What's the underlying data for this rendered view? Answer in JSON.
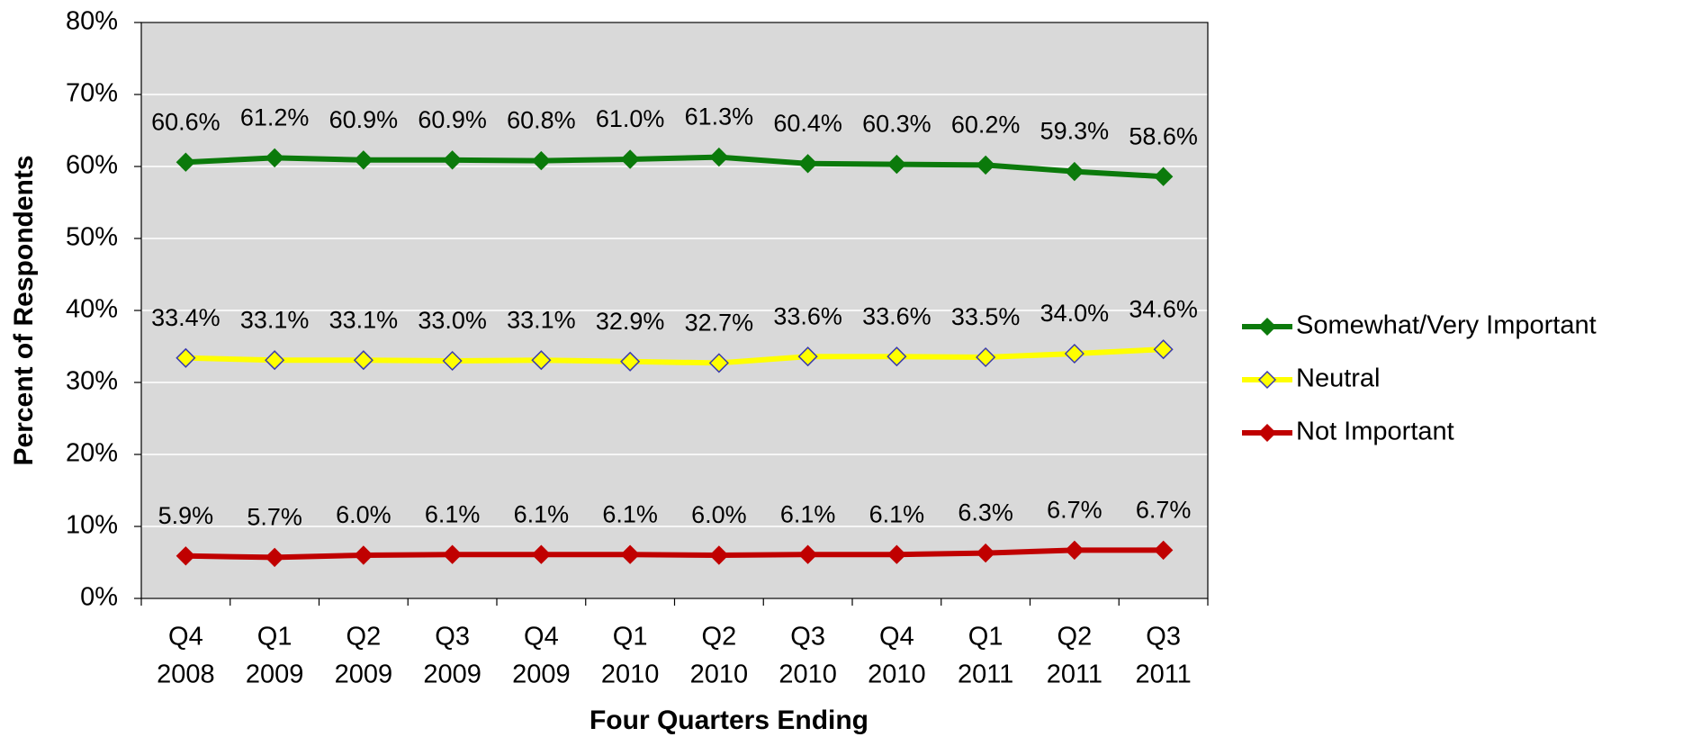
{
  "chart_data": {
    "type": "line",
    "xlabel": "Four Quarters Ending",
    "ylabel": "Percent of Respondents",
    "categories": [
      [
        "Q4",
        "2008"
      ],
      [
        "Q1",
        "2009"
      ],
      [
        "Q2",
        "2009"
      ],
      [
        "Q3",
        "2009"
      ],
      [
        "Q4",
        "2009"
      ],
      [
        "Q1",
        "2010"
      ],
      [
        "Q2",
        "2010"
      ],
      [
        "Q3",
        "2010"
      ],
      [
        "Q4",
        "2010"
      ],
      [
        "Q1",
        "2011"
      ],
      [
        "Q2",
        "2011"
      ],
      [
        "Q3",
        "2011"
      ]
    ],
    "series": [
      {
        "name": "Somewhat/Very Important",
        "color": "#0b7a0b",
        "marker_color": "#0b7a0b",
        "values": [
          60.6,
          61.2,
          60.9,
          60.9,
          60.8,
          61.0,
          61.3,
          60.4,
          60.3,
          60.2,
          59.3,
          58.6
        ],
        "value_labels": [
          "60.6%",
          "61.2%",
          "60.9%",
          "60.9%",
          "60.8%",
          "61.0%",
          "61.3%",
          "60.4%",
          "60.3%",
          "60.2%",
          "59.3%",
          "58.6%"
        ]
      },
      {
        "name": "Neutral",
        "color": "#ffff00",
        "marker_color": "#3a3ab0",
        "values": [
          33.4,
          33.1,
          33.1,
          33.0,
          33.1,
          32.9,
          32.7,
          33.6,
          33.6,
          33.5,
          34.0,
          34.6
        ],
        "value_labels": [
          "33.4%",
          "33.1%",
          "33.1%",
          "33.0%",
          "33.1%",
          "32.9%",
          "32.7%",
          "33.6%",
          "33.6%",
          "33.5%",
          "34.0%",
          "34.6%"
        ]
      },
      {
        "name": "Not Important",
        "color": "#c00000",
        "marker_color": "#c00000",
        "values": [
          5.9,
          5.7,
          6.0,
          6.1,
          6.1,
          6.1,
          6.0,
          6.1,
          6.1,
          6.3,
          6.7,
          6.7
        ],
        "value_labels": [
          "5.9%",
          "5.7%",
          "6.0%",
          "6.1%",
          "6.1%",
          "6.1%",
          "6.0%",
          "6.1%",
          "6.1%",
          "6.3%",
          "6.7%",
          "6.7%"
        ]
      }
    ],
    "ylim": [
      0,
      80
    ],
    "yticks": [
      {
        "value": 0,
        "label": "0%"
      },
      {
        "value": 10,
        "label": "10%"
      },
      {
        "value": 20,
        "label": "20%"
      },
      {
        "value": 30,
        "label": "30%"
      },
      {
        "value": 40,
        "label": "40%"
      },
      {
        "value": 50,
        "label": "50%"
      },
      {
        "value": 60,
        "label": "60%"
      },
      {
        "value": 70,
        "label": "70%"
      },
      {
        "value": 80,
        "label": "80%"
      }
    ],
    "grid": true,
    "legend": "right"
  }
}
